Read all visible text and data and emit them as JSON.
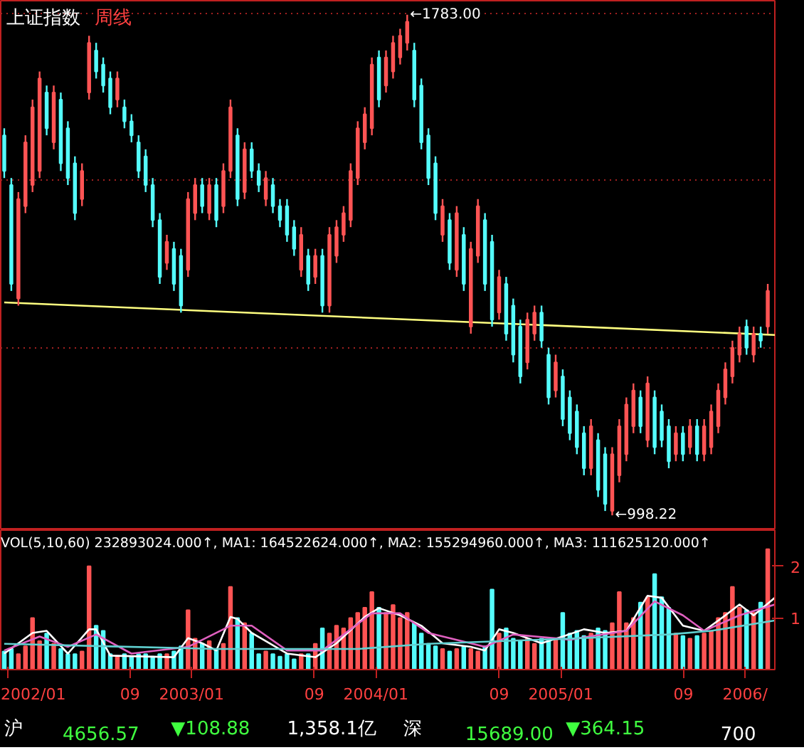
{
  "chart_data": [
    {
      "type": "candlestick",
      "title": "上证指数",
      "subtitle": "周线",
      "x": [
        "2001-12-26",
        "2002-01-09",
        "2002-01-23",
        "2002-02-06",
        "2002-02-20",
        "2002-03-06",
        "2002-03-20",
        "2002-04-03",
        "2002-04-17",
        "2002-05-01",
        "2002-05-15",
        "2002-05-29",
        "2002-06-12",
        "2002-06-26",
        "2002-07-10",
        "2002-07-24",
        "2002-08-07",
        "2002-08-21",
        "2002-09-04",
        "2002-09-18",
        "2002-10-02",
        "2002-10-16",
        "2002-10-30",
        "2002-11-13",
        "2002-11-27",
        "2002-12-11",
        "2002-12-25",
        "2003-01-08",
        "2003-01-22",
        "2003-02-05",
        "2003-02-19",
        "2003-03-05",
        "2003-03-19",
        "2003-04-02",
        "2003-04-16",
        "2003-04-30",
        "2003-05-14",
        "2003-05-28",
        "2003-06-11",
        "2003-06-25",
        "2003-07-09",
        "2003-07-23",
        "2003-08-06",
        "2003-08-20",
        "2003-09-03",
        "2003-09-17",
        "2003-10-01",
        "2003-10-15",
        "2003-10-29",
        "2003-11-12",
        "2003-11-26",
        "2003-12-10",
        "2003-12-24",
        "2004-01-07",
        "2004-01-21",
        "2004-02-04",
        "2004-02-18",
        "2004-03-03",
        "2004-03-17",
        "2004-03-31",
        "2004-04-14",
        "2004-04-28",
        "2004-05-12",
        "2004-05-26",
        "2004-06-09",
        "2004-06-23",
        "2004-07-07",
        "2004-07-21",
        "2004-08-04",
        "2004-08-18",
        "2004-09-01",
        "2004-09-15",
        "2004-09-29",
        "2004-10-13",
        "2004-10-27",
        "2004-11-10",
        "2004-11-24",
        "2004-12-08",
        "2004-12-22",
        "2005-01-05",
        "2005-01-19",
        "2005-02-02",
        "2005-02-16",
        "2005-03-02",
        "2005-03-16",
        "2005-03-30",
        "2005-04-13",
        "2005-04-27",
        "2005-05-11",
        "2005-05-25",
        "2005-06-08",
        "2005-06-22",
        "2005-07-06",
        "2005-07-20",
        "2005-08-03",
        "2005-08-17",
        "2005-08-31",
        "2005-09-14",
        "2005-09-28",
        "2005-10-12",
        "2005-10-26",
        "2005-11-09",
        "2005-11-23",
        "2005-12-07",
        "2005-12-21",
        "2006-01-04",
        "2006-01-18",
        "2006-02-01",
        "2006-02-15"
      ],
      "ohlc": [
        [
          1594,
          1605,
          1527,
          1538
        ],
        [
          1516,
          1527,
          1350,
          1361
        ],
        [
          1338,
          1505,
          1327,
          1494
        ],
        [
          1483,
          1594,
          1472,
          1583
        ],
        [
          1516,
          1650,
          1505,
          1638
        ],
        [
          1538,
          1694,
          1527,
          1683
        ],
        [
          1661,
          1672,
          1594,
          1605
        ],
        [
          1583,
          1672,
          1572,
          1661
        ],
        [
          1650,
          1661,
          1538,
          1550
        ],
        [
          1605,
          1616,
          1516,
          1527
        ],
        [
          1550,
          1561,
          1461,
          1472
        ],
        [
          1494,
          1550,
          1483,
          1538
        ],
        [
          1661,
          1750,
          1650,
          1739
        ],
        [
          1727,
          1739,
          1683,
          1694
        ],
        [
          1705,
          1716,
          1661,
          1672
        ],
        [
          1683,
          1694,
          1627,
          1638
        ],
        [
          1650,
          1694,
          1638,
          1683
        ],
        [
          1638,
          1650,
          1605,
          1616
        ],
        [
          1616,
          1627,
          1583,
          1594
        ],
        [
          1583,
          1594,
          1527,
          1538
        ],
        [
          1561,
          1572,
          1505,
          1516
        ],
        [
          1516,
          1527,
          1450,
          1461
        ],
        [
          1461,
          1472,
          1361,
          1372
        ],
        [
          1394,
          1438,
          1383,
          1427
        ],
        [
          1416,
          1427,
          1350,
          1361
        ],
        [
          1405,
          1416,
          1316,
          1327
        ],
        [
          1383,
          1505,
          1372,
          1494
        ],
        [
          1472,
          1527,
          1461,
          1516
        ],
        [
          1516,
          1527,
          1472,
          1483
        ],
        [
          1472,
          1527,
          1461,
          1516
        ],
        [
          1516,
          1527,
          1450,
          1461
        ],
        [
          1483,
          1550,
          1472,
          1538
        ],
        [
          1538,
          1650,
          1527,
          1638
        ],
        [
          1594,
          1605,
          1483,
          1494
        ],
        [
          1505,
          1583,
          1494,
          1572
        ],
        [
          1572,
          1583,
          1527,
          1538
        ],
        [
          1538,
          1550,
          1505,
          1516
        ],
        [
          1494,
          1538,
          1483,
          1527
        ],
        [
          1516,
          1527,
          1472,
          1483
        ],
        [
          1483,
          1494,
          1450,
          1461
        ],
        [
          1483,
          1494,
          1427,
          1438
        ],
        [
          1450,
          1461,
          1405,
          1416
        ],
        [
          1383,
          1450,
          1372,
          1438
        ],
        [
          1405,
          1416,
          1350,
          1361
        ],
        [
          1372,
          1416,
          1361,
          1405
        ],
        [
          1405,
          1416,
          1316,
          1327
        ],
        [
          1327,
          1450,
          1316,
          1438
        ],
        [
          1405,
          1461,
          1394,
          1450
        ],
        [
          1438,
          1483,
          1427,
          1472
        ],
        [
          1461,
          1550,
          1450,
          1538
        ],
        [
          1527,
          1616,
          1516,
          1605
        ],
        [
          1583,
          1638,
          1572,
          1627
        ],
        [
          1605,
          1716,
          1594,
          1705
        ],
        [
          1716,
          1727,
          1638,
          1650
        ],
        [
          1672,
          1727,
          1661,
          1716
        ],
        [
          1694,
          1750,
          1683,
          1739
        ],
        [
          1716,
          1761,
          1705,
          1750
        ],
        [
          1739,
          1783,
          1727,
          1772
        ],
        [
          1727,
          1739,
          1638,
          1650
        ],
        [
          1672,
          1683,
          1572,
          1583
        ],
        [
          1594,
          1605,
          1516,
          1527
        ],
        [
          1550,
          1561,
          1461,
          1472
        ],
        [
          1438,
          1494,
          1427,
          1483
        ],
        [
          1461,
          1472,
          1383,
          1394
        ],
        [
          1383,
          1483,
          1372,
          1472
        ],
        [
          1438,
          1450,
          1350,
          1361
        ],
        [
          1294,
          1427,
          1283,
          1416
        ],
        [
          1405,
          1494,
          1394,
          1483
        ],
        [
          1461,
          1472,
          1350,
          1361
        ],
        [
          1427,
          1438,
          1294,
          1305
        ],
        [
          1316,
          1383,
          1305,
          1372
        ],
        [
          1361,
          1372,
          1272,
          1283
        ],
        [
          1327,
          1338,
          1238,
          1250
        ],
        [
          1294,
          1305,
          1205,
          1216
        ],
        [
          1238,
          1316,
          1227,
          1305
        ],
        [
          1283,
          1327,
          1272,
          1316
        ],
        [
          1316,
          1327,
          1261,
          1272
        ],
        [
          1250,
          1261,
          1172,
          1183
        ],
        [
          1194,
          1250,
          1183,
          1238
        ],
        [
          1216,
          1227,
          1138,
          1149
        ],
        [
          1183,
          1194,
          1116,
          1127
        ],
        [
          1161,
          1172,
          1094,
          1105
        ],
        [
          1127,
          1138,
          1061,
          1072
        ],
        [
          1072,
          1149,
          1061,
          1138
        ],
        [
          1116,
          1127,
          1027,
          1038
        ],
        [
          1094,
          1105,
          1005,
          1016
        ],
        [
          1005,
          1105,
          998.22,
          1094
        ],
        [
          1061,
          1149,
          1050,
          1138
        ],
        [
          1094,
          1183,
          1083,
          1172
        ],
        [
          1138,
          1205,
          1127,
          1194
        ],
        [
          1183,
          1194,
          1127,
          1138
        ],
        [
          1116,
          1216,
          1105,
          1205
        ],
        [
          1183,
          1194,
          1094,
          1105
        ],
        [
          1161,
          1172,
          1105,
          1116
        ],
        [
          1138,
          1149,
          1072,
          1083
        ],
        [
          1094,
          1138,
          1083,
          1127
        ],
        [
          1127,
          1138,
          1083,
          1094
        ],
        [
          1105,
          1149,
          1094,
          1138
        ],
        [
          1138,
          1149,
          1083,
          1094
        ],
        [
          1094,
          1149,
          1083,
          1138
        ],
        [
          1105,
          1172,
          1094,
          1161
        ],
        [
          1138,
          1205,
          1127,
          1194
        ],
        [
          1183,
          1238,
          1172,
          1227
        ],
        [
          1216,
          1272,
          1205,
          1261
        ],
        [
          1250,
          1294,
          1238,
          1283
        ],
        [
          1294,
          1305,
          1250,
          1261
        ],
        [
          1250,
          1294,
          1238,
          1283
        ],
        [
          1283,
          1294,
          1261,
          1272
        ],
        [
          1294,
          1361,
          1283,
          1350
        ]
      ],
      "colors": [
        "#54fcfc",
        "#54fcfc",
        "#ff5454",
        "#ff5454",
        "#ff5454",
        "#ff5454",
        "#54fcfc",
        "#ff5454",
        "#54fcfc",
        "#54fcfc",
        "#54fcfc",
        "#ff5454",
        "#ff5454",
        "#54fcfc",
        "#54fcfc",
        "#54fcfc",
        "#ff5454",
        "#54fcfc",
        "#54fcfc",
        "#54fcfc",
        "#54fcfc",
        "#54fcfc",
        "#54fcfc",
        "#ff5454",
        "#54fcfc",
        "#54fcfc",
        "#ff5454",
        "#ff5454",
        "#54fcfc",
        "#ff5454",
        "#54fcfc",
        "#ff5454",
        "#ff5454",
        "#54fcfc",
        "#ff5454",
        "#54fcfc",
        "#54fcfc",
        "#ff5454",
        "#54fcfc",
        "#54fcfc",
        "#54fcfc",
        "#54fcfc",
        "#ff5454",
        "#54fcfc",
        "#ff5454",
        "#54fcfc",
        "#ff5454",
        "#ff5454",
        "#ff5454",
        "#ff5454",
        "#ff5454",
        "#ff5454",
        "#ff5454",
        "#54fcfc",
        "#ff5454",
        "#ff5454",
        "#ff5454",
        "#ff5454",
        "#54fcfc",
        "#54fcfc",
        "#54fcfc",
        "#54fcfc",
        "#ff5454",
        "#54fcfc",
        "#ff5454",
        "#54fcfc",
        "#ff5454",
        "#ff5454",
        "#54fcfc",
        "#54fcfc",
        "#ff5454",
        "#54fcfc",
        "#54fcfc",
        "#54fcfc",
        "#ff5454",
        "#ff5454",
        "#54fcfc",
        "#54fcfc",
        "#ff5454",
        "#54fcfc",
        "#54fcfc",
        "#54fcfc",
        "#54fcfc",
        "#ff5454",
        "#54fcfc",
        "#54fcfc",
        "#ff5454",
        "#ff5454",
        "#ff5454",
        "#ff5454",
        "#54fcfc",
        "#ff5454",
        "#54fcfc",
        "#54fcfc",
        "#54fcfc",
        "#ff5454",
        "#54fcfc",
        "#ff5454",
        "#54fcfc",
        "#ff5454",
        "#ff5454",
        "#ff5454",
        "#ff5454",
        "#ff5454",
        "#ff5454",
        "#54fcfc",
        "#ff5454",
        "#54fcfc",
        "#ff5454"
      ],
      "series": [
        {
          "type": "line",
          "color": "#ffff80",
          "x": [
            "2001-12-26",
            "2006-03-01"
          ],
          "values": [
            1332,
            1281
          ]
        }
      ],
      "annotations": [
        {
          "text": "←1783.00",
          "x": "2004-03-03",
          "y": 1783
        },
        {
          "text": "←998.22",
          "x": "2005-04-13",
          "y": 998.22
        }
      ],
      "xlim": [
        "2001-12-19",
        "2006-03-01"
      ],
      "ylim": [
        975,
        1805
      ],
      "yticks": [
        {
          "value": 1785,
          "label": null
        },
        {
          "value": 1523,
          "label": null
        },
        {
          "value": 1261,
          "label": null
        }
      ],
      "grid": "y",
      "tick_labels": false
    },
    {
      "type": "bar",
      "x": [
        "2001-12-26",
        "2002-01-09",
        "2002-01-23",
        "2002-02-06",
        "2002-02-20",
        "2002-03-06",
        "2002-03-20",
        "2002-04-03",
        "2002-04-17",
        "2002-05-01",
        "2002-05-15",
        "2002-05-29",
        "2002-06-12",
        "2002-06-26",
        "2002-07-10",
        "2002-07-24",
        "2002-08-07",
        "2002-08-21",
        "2002-09-04",
        "2002-09-18",
        "2002-10-02",
        "2002-10-16",
        "2002-10-30",
        "2002-11-13",
        "2002-11-27",
        "2002-12-11",
        "2002-12-25",
        "2003-01-08",
        "2003-01-22",
        "2003-02-05",
        "2003-02-19",
        "2003-03-05",
        "2003-03-19",
        "2003-04-02",
        "2003-04-16",
        "2003-04-30",
        "2003-05-14",
        "2003-05-28",
        "2003-06-11",
        "2003-06-25",
        "2003-07-09",
        "2003-07-23",
        "2003-08-06",
        "2003-08-20",
        "2003-09-03",
        "2003-09-17",
        "2003-10-01",
        "2003-10-15",
        "2003-10-29",
        "2003-11-12",
        "2003-11-26",
        "2003-12-10",
        "2003-12-24",
        "2004-01-07",
        "2004-01-21",
        "2004-02-04",
        "2004-02-18",
        "2004-03-03",
        "2004-03-17",
        "2004-03-31",
        "2004-04-14",
        "2004-04-28",
        "2004-05-12",
        "2004-05-26",
        "2004-06-09",
        "2004-06-23",
        "2004-07-07",
        "2004-07-21",
        "2004-08-04",
        "2004-08-18",
        "2004-09-01",
        "2004-09-15",
        "2004-09-29",
        "2004-10-13",
        "2004-10-27",
        "2004-11-10",
        "2004-11-24",
        "2004-12-08",
        "2004-12-22",
        "2005-01-05",
        "2005-01-19",
        "2005-02-02",
        "2005-02-16",
        "2005-03-02",
        "2005-03-16",
        "2005-03-30",
        "2005-04-13",
        "2005-04-27",
        "2005-05-11",
        "2005-05-25",
        "2005-06-08",
        "2005-06-22",
        "2005-07-06",
        "2005-07-20",
        "2005-08-03",
        "2005-08-17",
        "2005-08-31",
        "2005-09-14",
        "2005-09-28",
        "2005-10-12",
        "2005-10-26",
        "2005-11-09",
        "2005-11-23",
        "2005-12-07",
        "2005-12-21",
        "2006-01-04",
        "2006-01-18",
        "2006-02-01",
        "2006-02-15"
      ],
      "values": [
        0.35,
        0.4,
        0.3,
        0.45,
        1.0,
        0.55,
        0.7,
        0.5,
        0.4,
        0.3,
        0.3,
        0.35,
        2.0,
        0.85,
        0.75,
        0.3,
        0.25,
        0.3,
        0.25,
        0.3,
        0.3,
        0.25,
        0.3,
        0.3,
        0.35,
        0.45,
        1.15,
        0.6,
        0.5,
        0.55,
        0.4,
        0.5,
        1.6,
        1.0,
        0.9,
        0.7,
        0.3,
        0.35,
        0.3,
        0.25,
        0.3,
        0.2,
        0.3,
        0.3,
        0.5,
        0.8,
        0.7,
        0.85,
        0.8,
        1.0,
        1.1,
        1.2,
        1.5,
        1.2,
        1.1,
        1.25,
        1.0,
        1.1,
        0.9,
        0.7,
        0.5,
        0.45,
        0.4,
        0.35,
        0.4,
        0.45,
        0.4,
        0.35,
        0.45,
        1.55,
        0.7,
        0.8,
        0.6,
        0.55,
        0.6,
        0.5,
        0.6,
        0.55,
        0.6,
        1.1,
        0.7,
        0.75,
        0.65,
        0.7,
        0.8,
        0.75,
        0.9,
        1.5,
        0.9,
        1.0,
        1.3,
        1.4,
        1.85,
        1.4,
        1.2,
        0.7,
        0.65,
        0.6,
        0.65,
        0.7,
        0.75,
        1.0,
        1.1,
        1.6,
        1.2,
        1.15,
        1.1,
        1.3,
        2.33
      ],
      "colors": [
        "#54fcfc",
        "#54fcfc",
        "#ff5454",
        "#ff5454",
        "#ff5454",
        "#ff5454",
        "#54fcfc",
        "#ff5454",
        "#54fcfc",
        "#54fcfc",
        "#54fcfc",
        "#ff5454",
        "#ff5454",
        "#54fcfc",
        "#54fcfc",
        "#54fcfc",
        "#ff5454",
        "#54fcfc",
        "#54fcfc",
        "#54fcfc",
        "#54fcfc",
        "#54fcfc",
        "#54fcfc",
        "#ff5454",
        "#54fcfc",
        "#54fcfc",
        "#ff5454",
        "#ff5454",
        "#54fcfc",
        "#ff5454",
        "#54fcfc",
        "#ff5454",
        "#ff5454",
        "#54fcfc",
        "#ff5454",
        "#54fcfc",
        "#54fcfc",
        "#ff5454",
        "#54fcfc",
        "#54fcfc",
        "#54fcfc",
        "#54fcfc",
        "#ff5454",
        "#54fcfc",
        "#ff5454",
        "#54fcfc",
        "#ff5454",
        "#ff5454",
        "#ff5454",
        "#ff5454",
        "#ff5454",
        "#ff5454",
        "#ff5454",
        "#54fcfc",
        "#ff5454",
        "#ff5454",
        "#ff5454",
        "#ff5454",
        "#54fcfc",
        "#54fcfc",
        "#54fcfc",
        "#54fcfc",
        "#ff5454",
        "#54fcfc",
        "#ff5454",
        "#54fcfc",
        "#ff5454",
        "#ff5454",
        "#54fcfc",
        "#54fcfc",
        "#ff5454",
        "#54fcfc",
        "#54fcfc",
        "#54fcfc",
        "#ff5454",
        "#ff5454",
        "#54fcfc",
        "#54fcfc",
        "#ff5454",
        "#54fcfc",
        "#54fcfc",
        "#54fcfc",
        "#54fcfc",
        "#ff5454",
        "#54fcfc",
        "#54fcfc",
        "#ff5454",
        "#ff5454",
        "#ff5454",
        "#ff5454",
        "#54fcfc",
        "#ff5454",
        "#54fcfc",
        "#54fcfc",
        "#54fcfc",
        "#ff5454",
        "#54fcfc",
        "#ff5454",
        "#54fcfc",
        "#ff5454",
        "#ff5454",
        "#ff5454",
        "#ff5454",
        "#ff5454",
        "#ff5454",
        "#54fcfc",
        "#ff5454",
        "#54fcfc",
        "#ff5454"
      ],
      "series": [
        {
          "type": "line",
          "color": "#ffffff",
          "x": [
            "2001-12-26",
            "2002-02-20",
            "2002-03-20",
            "2002-05-01",
            "2002-06-12",
            "2002-06-26",
            "2002-07-24",
            "2002-11-27",
            "2002-12-25",
            "2003-01-22",
            "2003-02-19",
            "2003-03-19",
            "2003-04-02",
            "2003-04-30",
            "2003-07-09",
            "2003-09-03",
            "2003-10-15",
            "2003-12-10",
            "2004-01-07",
            "2004-02-18",
            "2004-03-31",
            "2004-05-12",
            "2004-07-07",
            "2004-08-04",
            "2004-09-01",
            "2004-09-29",
            "2004-11-24",
            "2005-01-05",
            "2005-02-16",
            "2005-03-30",
            "2005-05-11",
            "2005-06-22",
            "2005-07-20",
            "2005-08-31",
            "2005-10-12",
            "2005-11-23",
            "2005-12-21",
            "2006-01-18",
            "2006-03-01"
          ],
          "values": [
            0.31,
            0.71,
            0.75,
            0.31,
            0.78,
            0.78,
            0.27,
            0.24,
            0.61,
            0.51,
            0.37,
            1.02,
            0.98,
            0.71,
            0.31,
            0.24,
            0.51,
            1.02,
            1.19,
            1.05,
            0.85,
            0.51,
            0.44,
            0.37,
            0.78,
            0.71,
            0.51,
            0.64,
            0.78,
            0.71,
            0.75,
            1.43,
            1.39,
            0.85,
            0.75,
            1.05,
            1.26,
            1.05,
            1.39
          ]
        },
        {
          "type": "line",
          "color": "#e060c0",
          "x": [
            "2001-12-26",
            "2002-03-06",
            "2002-05-01",
            "2002-06-26",
            "2002-09-04",
            "2002-12-25",
            "2003-03-19",
            "2003-04-30",
            "2003-07-09",
            "2003-09-17",
            "2003-12-24",
            "2004-02-18",
            "2004-04-14",
            "2004-08-04",
            "2004-09-29",
            "2005-01-19",
            "2005-05-11",
            "2005-07-06",
            "2005-08-31",
            "2005-10-12",
            "2005-12-21",
            "2006-03-01"
          ],
          "values": [
            0.37,
            0.64,
            0.44,
            0.68,
            0.31,
            0.44,
            0.85,
            0.85,
            0.37,
            0.37,
            1.09,
            1.09,
            0.71,
            0.44,
            0.68,
            0.58,
            0.75,
            1.32,
            1.05,
            0.75,
            1.05,
            1.26
          ]
        },
        {
          "type": "line",
          "color": "#60d0d0",
          "x": [
            "2001-12-26",
            "2002-07-24",
            "2003-02-19",
            "2003-11-26",
            "2004-04-14",
            "2005-01-19",
            "2005-08-03",
            "2005-10-26",
            "2006-03-01"
          ],
          "values": [
            0.5,
            0.45,
            0.4,
            0.4,
            0.5,
            0.6,
            0.68,
            0.75,
            0.95
          ]
        }
      ],
      "annotations": [
        "VOL(5,10,60) 232893024.000↑, MA1: 164522624.000↑, MA2: 155294960.000↑, MA3: 111625120.000↑"
      ],
      "xlim": [
        "2001-12-19",
        "2006-03-01"
      ],
      "ylim": [
        0,
        2.7
      ],
      "xticks": [
        {
          "value": "2002-01-01",
          "label": "2002/01"
        },
        {
          "value": "2002-09-01",
          "label": "09"
        },
        {
          "value": "2003-01-01",
          "label": "2003/01"
        },
        {
          "value": "2003-09-01",
          "label": "09"
        },
        {
          "value": "2004-01-01",
          "label": "2004/01"
        },
        {
          "value": "2004-09-01",
          "label": "09"
        },
        {
          "value": "2005-01-01",
          "label": "2005/01"
        },
        {
          "value": "2005-09-01",
          "label": "09"
        },
        {
          "value": "2006-01-01",
          "label": "2006/"
        }
      ],
      "yticks": [
        1,
        2
      ]
    },
    {
      "type": "other",
      "annotations": [
        "沪",
        "4656.57",
        "▼108.88",
        "1,358.1亿",
        "深",
        "15689.00",
        "▼364.15",
        "700"
      ]
    }
  ]
}
